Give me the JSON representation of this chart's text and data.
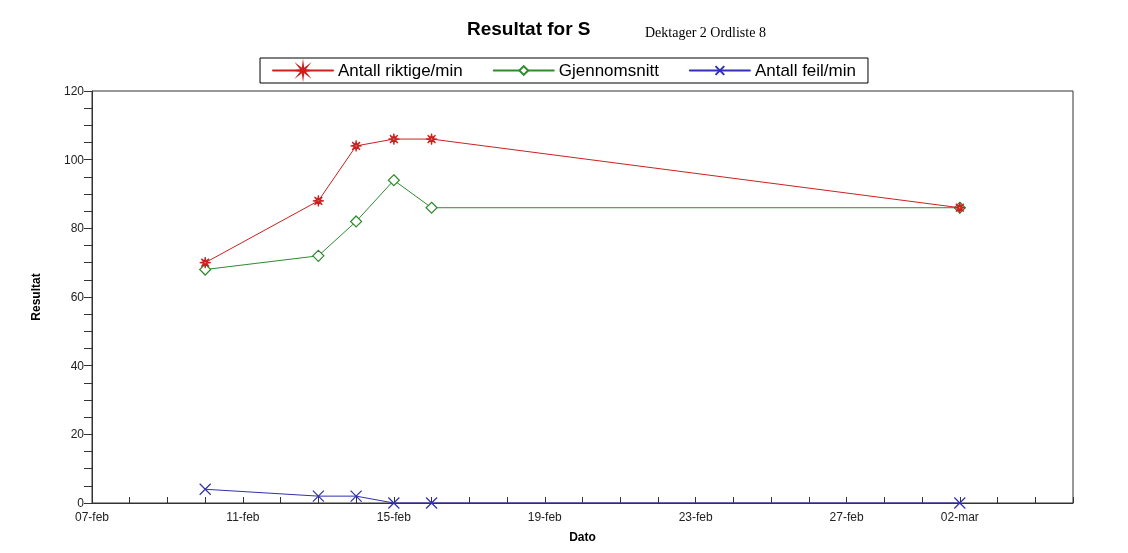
{
  "chart_data": {
    "type": "line",
    "title": "Resultat for S",
    "subtitle": "Dektager 2 Ordliste 8",
    "xlabel": "Dato",
    "ylabel": "Resultat",
    "x": [
      "--02-10",
      "--02-13",
      "--02-14",
      "--02-15",
      "--02-16",
      "--03-02"
    ],
    "series": [
      {
        "name": "Antall riktige/min",
        "color": "#cc2020",
        "marker": "star",
        "values": [
          70,
          88,
          104,
          106,
          106,
          86
        ]
      },
      {
        "name": "Gjennomsnitt",
        "color": "#2e8b2e",
        "marker": "diamond",
        "values": [
          68,
          72,
          82,
          94,
          86,
          86
        ]
      },
      {
        "name": "Antall feil/min",
        "color": "#3030b0",
        "marker": "cross",
        "values": [
          4,
          2,
          2,
          0,
          0,
          0
        ]
      }
    ],
    "xlim": [
      "--02-07",
      "--03-05"
    ],
    "xticks": [
      {
        "value": "--02-07",
        "label": "07-feb"
      },
      {
        "value": "--02-08",
        "label": null
      },
      {
        "value": "--02-09",
        "label": null
      },
      {
        "value": "--02-10",
        "label": null
      },
      {
        "value": "--02-11",
        "label": "11-feb"
      },
      {
        "value": "--02-12",
        "label": null
      },
      {
        "value": "--02-13",
        "label": null
      },
      {
        "value": "--02-14",
        "label": null
      },
      {
        "value": "--02-15",
        "label": "15-feb"
      },
      {
        "value": "--02-16",
        "label": null
      },
      {
        "value": "--02-17",
        "label": null
      },
      {
        "value": "--02-18",
        "label": null
      },
      {
        "value": "--02-19",
        "label": "19-feb"
      },
      {
        "value": "--02-20",
        "label": null
      },
      {
        "value": "--02-21",
        "label": null
      },
      {
        "value": "--02-22",
        "label": null
      },
      {
        "value": "--02-23",
        "label": "23-feb"
      },
      {
        "value": "--02-24",
        "label": null
      },
      {
        "value": "--02-25",
        "label": null
      },
      {
        "value": "--02-26",
        "label": null
      },
      {
        "value": "--02-27",
        "label": "27-feb"
      },
      {
        "value": "--02-28",
        "label": null
      },
      {
        "value": "--03-01",
        "label": null
      },
      {
        "value": "--03-02",
        "label": "02-mar"
      },
      {
        "value": "--03-03",
        "label": null
      },
      {
        "value": "--03-04",
        "label": null
      },
      {
        "value": "--03-05",
        "label": null
      }
    ],
    "ylim": [
      0,
      120
    ],
    "yticks": [
      0,
      {
        "value": 5,
        "label": null
      },
      {
        "value": 10,
        "label": null
      },
      {
        "value": 15,
        "label": null
      },
      20,
      {
        "value": 25,
        "label": null
      },
      {
        "value": 30,
        "label": null
      },
      {
        "value": 35,
        "label": null
      },
      40,
      {
        "value": 45,
        "label": null
      },
      {
        "value": 50,
        "label": null
      },
      {
        "value": 55,
        "label": null
      },
      60,
      {
        "value": 65,
        "label": null
      },
      {
        "value": 70,
        "label": null
      },
      {
        "value": 75,
        "label": null
      },
      80,
      {
        "value": 85,
        "label": null
      },
      {
        "value": 90,
        "label": null
      },
      {
        "value": 95,
        "label": null
      },
      100,
      {
        "value": 105,
        "label": null
      },
      {
        "value": 110,
        "label": null
      },
      {
        "value": 115,
        "label": null
      },
      120
    ],
    "grid": false,
    "legend": "top",
    "line_style": "solid"
  }
}
